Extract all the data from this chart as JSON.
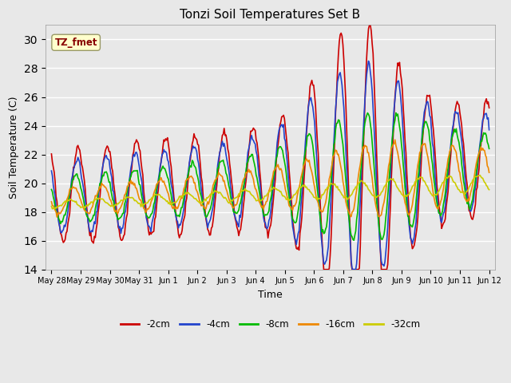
{
  "title": "Tonzi Soil Temperatures Set B",
  "xlabel": "Time",
  "ylabel": "Soil Temperature (C)",
  "ylim": [
    14,
    31
  ],
  "yticks": [
    14,
    16,
    18,
    20,
    22,
    24,
    26,
    28,
    30
  ],
  "background_color": "#e8e8e8",
  "plot_bg_color": "#e8e8e8",
  "series_colors": {
    "-2cm": "#cc0000",
    "-4cm": "#2244cc",
    "-8cm": "#00bb00",
    "-16cm": "#ee8800",
    "-32cm": "#cccc00"
  },
  "series_labels": [
    "-2cm",
    "-4cm",
    "-8cm",
    "-16cm",
    "-32cm"
  ],
  "annotation_text": "TZ_fmet",
  "annotation_box_color": "#ffffcc",
  "annotation_text_color": "#880000",
  "x_tick_labels": [
    "May 28",
    "May 29",
    "May 30",
    "May 31",
    "Jun 1",
    "Jun 2",
    "Jun 3",
    "Jun 4",
    "Jun 5",
    "Jun 6",
    "Jun 7",
    "Jun 8",
    "Jun 9",
    "Jun 10",
    "Jun 11",
    "Jun 12"
  ],
  "line_width": 1.2,
  "n_points": 480
}
